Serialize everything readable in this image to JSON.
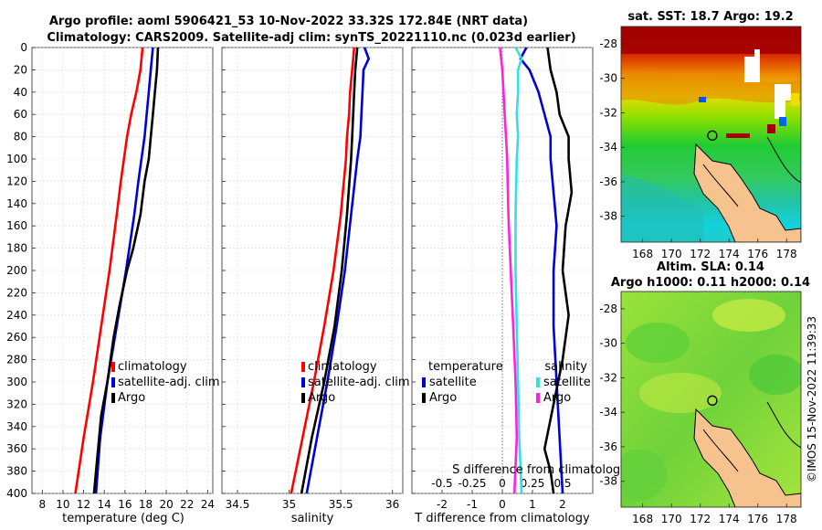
{
  "title": {
    "line1": "Argo profile: aoml 5906421_53 10-Nov-2022 33.32S 172.84E (NRT data)",
    "line2": "Climatology: CARS2009. Satellite-adj clim: synTS_20221110.nc (0.023d earlier)"
  },
  "copyright": "©IMOS 15-Nov-2022 11:39:33",
  "colors": {
    "climatology": "#ff0000",
    "satellite": "#0000dd",
    "argo": "#000000",
    "sat_s": "#33e0e0",
    "argo_s": "#ff22dd",
    "land": "#f6c28e"
  },
  "chart_data": [
    {
      "type": "line",
      "id": "temperature",
      "xlabel": "temperature (deg C)",
      "xlim": [
        7,
        24.5
      ],
      "xticks": [
        8,
        10,
        12,
        14,
        16,
        18,
        20,
        22,
        24
      ],
      "ylim": [
        0,
        400
      ],
      "yticks": [
        0,
        20,
        40,
        60,
        80,
        100,
        120,
        140,
        160,
        180,
        200,
        220,
        240,
        260,
        280,
        300,
        320,
        340,
        360,
        380,
        400
      ],
      "legend": [
        "climatology",
        "satellite-adj. clim",
        "Argo"
      ],
      "series": [
        {
          "name": "climatology",
          "color": "#ff0000",
          "depth": [
            0,
            20,
            40,
            60,
            80,
            100,
            120,
            150,
            200,
            250,
            300,
            350,
            400
          ],
          "values": [
            17.7,
            17.5,
            17.1,
            16.6,
            16.2,
            15.9,
            15.6,
            15.2,
            14.5,
            13.7,
            12.9,
            12.0,
            11.2
          ]
        },
        {
          "name": "satellite-adj. clim",
          "color": "#0000dd",
          "depth": [
            0,
            20,
            40,
            60,
            80,
            100,
            120,
            150,
            200,
            250,
            300,
            350,
            400
          ],
          "values": [
            18.7,
            18.5,
            18.3,
            18.1,
            17.9,
            17.6,
            17.3,
            16.9,
            16.1,
            15.2,
            14.3,
            13.6,
            13.2
          ]
        },
        {
          "name": "Argo",
          "color": "#000000",
          "depth": [
            0,
            20,
            40,
            60,
            80,
            100,
            120,
            150,
            180,
            200,
            230,
            260,
            300,
            330,
            360,
            400
          ],
          "values": [
            19.2,
            19.1,
            18.9,
            18.7,
            18.5,
            18.3,
            17.9,
            17.5,
            16.8,
            16.2,
            15.5,
            14.9,
            14.3,
            13.7,
            13.4,
            13.0
          ]
        }
      ]
    },
    {
      "type": "line",
      "id": "salinity",
      "xlabel": "salinity",
      "xlim": [
        34.35,
        36.1
      ],
      "xticks": [
        34.5,
        35,
        35.5,
        36
      ],
      "xticklabels": [
        "34.5",
        "35",
        "35.5",
        "36"
      ],
      "ylim": [
        0,
        400
      ],
      "legend": [
        "climatology",
        "satellite-adj. clim",
        "Argo"
      ],
      "series": [
        {
          "name": "climatology",
          "color": "#ff0000",
          "depth": [
            0,
            20,
            40,
            60,
            80,
            100,
            150,
            200,
            250,
            300,
            350,
            400
          ],
          "values": [
            35.63,
            35.61,
            35.59,
            35.58,
            35.56,
            35.55,
            35.5,
            35.43,
            35.34,
            35.24,
            35.13,
            35.02
          ]
        },
        {
          "name": "satellite-adj. clim",
          "color": "#0000dd",
          "depth": [
            0,
            10,
            20,
            40,
            60,
            80,
            100,
            150,
            200,
            250,
            300,
            350,
            400
          ],
          "values": [
            35.73,
            35.77,
            35.72,
            35.71,
            35.7,
            35.69,
            35.66,
            35.6,
            35.54,
            35.46,
            35.37,
            35.27,
            35.17
          ]
        },
        {
          "name": "Argo",
          "color": "#000000",
          "depth": [
            0,
            20,
            40,
            60,
            80,
            100,
            150,
            200,
            250,
            300,
            350,
            400
          ],
          "values": [
            35.66,
            35.64,
            35.63,
            35.62,
            35.61,
            35.6,
            35.56,
            35.51,
            35.44,
            35.34,
            35.22,
            35.12
          ]
        }
      ]
    },
    {
      "type": "line",
      "id": "difference",
      "xlabel": "T difference from climatology",
      "xlabel_top": "S difference from climatology",
      "xlim": [
        -3,
        3
      ],
      "xticks": [
        -2,
        -1,
        0,
        1,
        2
      ],
      "xticks_top": [
        "-0.5",
        "-0.25",
        "0",
        "0.25",
        "0.5"
      ],
      "ylim": [
        0,
        400
      ],
      "legend_t_title": "temperature",
      "legend_s_title": "salinity",
      "legend_t": [
        "satellite",
        "Argo"
      ],
      "legend_s": [
        "satellite",
        "Argo"
      ],
      "series": [
        {
          "name": "T satellite",
          "color": "#0000dd",
          "depth": [
            0,
            10,
            20,
            40,
            60,
            80,
            100,
            130,
            160,
            200,
            250,
            300,
            350,
            400
          ],
          "values": [
            0.8,
            0.6,
            0.9,
            1.2,
            1.4,
            1.6,
            1.6,
            1.7,
            1.8,
            1.7,
            1.7,
            1.8,
            1.9,
            2.0
          ]
        },
        {
          "name": "T Argo",
          "color": "#000000",
          "depth": [
            0,
            20,
            40,
            60,
            80,
            100,
            130,
            160,
            200,
            240,
            280,
            320,
            360,
            380,
            400
          ],
          "values": [
            1.5,
            1.6,
            1.8,
            1.9,
            2.2,
            2.2,
            2.3,
            2.1,
            2.0,
            2.2,
            2.0,
            1.7,
            1.4,
            1.6,
            1.7
          ]
        },
        {
          "name": "S satellite",
          "color": "#33e0e0",
          "depth": [
            0,
            10,
            20,
            40,
            60,
            80,
            100,
            150,
            200,
            250,
            300,
            350,
            400
          ],
          "values": [
            0.11,
            0.16,
            0.13,
            0.13,
            0.12,
            0.13,
            0.12,
            0.11,
            0.11,
            0.12,
            0.13,
            0.14,
            0.16
          ]
        },
        {
          "name": "S Argo",
          "color": "#ff22dd",
          "depth": [
            0,
            10,
            20,
            40,
            60,
            80,
            100,
            150,
            200,
            250,
            300,
            350,
            400
          ],
          "values": [
            -0.02,
            -0.01,
            0.0,
            0.01,
            0.02,
            0.03,
            0.04,
            0.05,
            0.07,
            0.09,
            0.11,
            0.12,
            0.1
          ]
        }
      ]
    },
    {
      "type": "heatmap",
      "id": "sst-map",
      "title": "sat. SST: 18.7 Argo: 19.2",
      "xlim": [
        166.5,
        179
      ],
      "ylim": [
        -39.5,
        -27
      ],
      "xticks": [
        168,
        170,
        172,
        174,
        176,
        178
      ],
      "yticks": [
        -28,
        -30,
        -32,
        -34,
        -36,
        -38
      ],
      "argo_position": [
        172.84,
        -33.32
      ]
    },
    {
      "type": "heatmap",
      "id": "sla-map",
      "title1": "Altim. SLA: 0.14",
      "title2": "Argo h1000: 0.11 h2000: 0.14",
      "xlim": [
        166.5,
        179
      ],
      "ylim": [
        -39.5,
        -27
      ],
      "xticks": [
        168,
        170,
        172,
        174,
        176,
        178
      ],
      "yticks": [
        -28,
        -30,
        -32,
        -34,
        -36,
        -38
      ],
      "argo_position": [
        172.84,
        -33.32
      ]
    }
  ]
}
